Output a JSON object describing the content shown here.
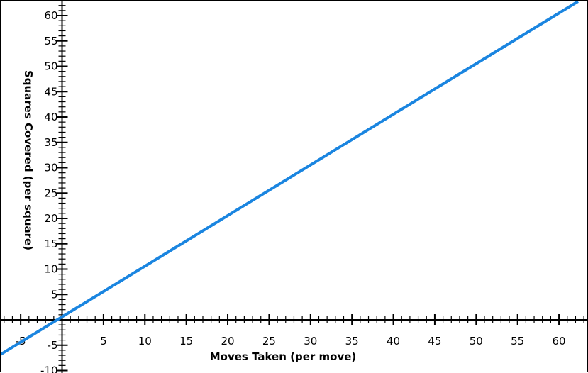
{
  "chart_data": {
    "type": "line",
    "xlabel": "Moves Taken (per move)",
    "ylabel": "Squares Covered (per square)",
    "xlim": [
      -8,
      63
    ],
    "ylim": [
      -10,
      63
    ],
    "x_ticks": [
      -5,
      5,
      10,
      15,
      20,
      25,
      30,
      35,
      40,
      45,
      50,
      55,
      60
    ],
    "y_ticks": [
      -10,
      -5,
      5,
      10,
      15,
      20,
      25,
      30,
      35,
      40,
      45,
      50,
      55,
      60
    ],
    "x_minor_step": 1,
    "y_minor_step": 1,
    "grid": false,
    "series": [
      {
        "color": "#1a85e0",
        "x": [
          -8,
          62.3
        ],
        "y": [
          -7.4,
          62.8
        ]
      }
    ]
  }
}
